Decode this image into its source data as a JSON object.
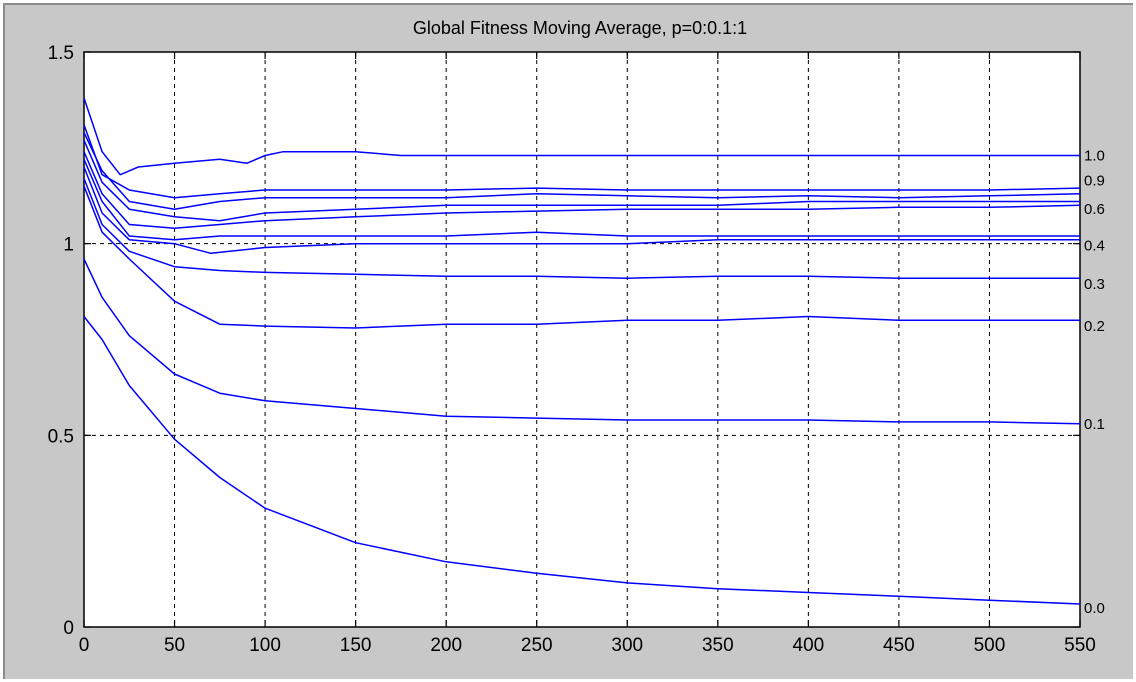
{
  "chart_data": {
    "type": "line",
    "title": "Global Fitness Moving Average, p=0:0.1:1",
    "xlabel": "",
    "ylabel": "",
    "xlim": [
      0,
      550
    ],
    "ylim": [
      0,
      1.5
    ],
    "x_ticks": [
      0,
      50,
      100,
      150,
      200,
      250,
      300,
      350,
      400,
      450,
      500,
      550
    ],
    "y_ticks": [
      0,
      0.5,
      1,
      1.5
    ],
    "y_tick_labels": [
      "0",
      "0.5",
      "1",
      "1.5"
    ],
    "grid": true,
    "line_color": "#0000ff",
    "series": [
      {
        "name": "0.0",
        "x": [
          0,
          10,
          25,
          50,
          75,
          100,
          150,
          200,
          250,
          300,
          350,
          400,
          450,
          500,
          550
        ],
        "y": [
          0.81,
          0.75,
          0.63,
          0.49,
          0.39,
          0.31,
          0.22,
          0.17,
          0.14,
          0.115,
          0.1,
          0.09,
          0.08,
          0.07,
          0.06
        ]
      },
      {
        "name": "0.1",
        "x": [
          0,
          10,
          25,
          50,
          75,
          100,
          150,
          200,
          250,
          300,
          350,
          400,
          450,
          500,
          550
        ],
        "y": [
          0.96,
          0.86,
          0.76,
          0.66,
          0.61,
          0.59,
          0.57,
          0.55,
          0.545,
          0.54,
          0.54,
          0.54,
          0.535,
          0.535,
          0.53
        ]
      },
      {
        "name": "0.2",
        "x": [
          0,
          10,
          25,
          50,
          75,
          100,
          150,
          200,
          250,
          300,
          350,
          400,
          450,
          500,
          550
        ],
        "y": [
          1.15,
          1.03,
          0.96,
          0.85,
          0.79,
          0.785,
          0.78,
          0.79,
          0.79,
          0.8,
          0.8,
          0.81,
          0.8,
          0.8,
          0.8
        ]
      },
      {
        "name": "0.3",
        "x": [
          0,
          10,
          25,
          50,
          75,
          100,
          150,
          200,
          250,
          300,
          350,
          400,
          450,
          500,
          550
        ],
        "y": [
          1.17,
          1.05,
          0.98,
          0.94,
          0.93,
          0.925,
          0.92,
          0.915,
          0.915,
          0.91,
          0.915,
          0.915,
          0.91,
          0.91,
          0.91
        ]
      },
      {
        "name": "",
        "x": [
          0,
          10,
          25,
          50,
          70,
          100,
          150,
          200,
          250,
          300,
          350,
          400,
          450,
          500,
          550
        ],
        "y": [
          1.2,
          1.08,
          1.01,
          1.0,
          0.975,
          0.99,
          1.0,
          1.0,
          1.0,
          1.0,
          1.01,
          1.01,
          1.01,
          1.01,
          1.01
        ]
      },
      {
        "name": "0.4",
        "x": [
          0,
          10,
          25,
          50,
          75,
          100,
          150,
          200,
          250,
          300,
          350,
          400,
          450,
          500,
          550
        ],
        "y": [
          1.22,
          1.11,
          1.02,
          1.01,
          1.02,
          1.02,
          1.02,
          1.02,
          1.03,
          1.02,
          1.02,
          1.02,
          1.02,
          1.02,
          1.02
        ]
      },
      {
        "name": "",
        "x": [
          0,
          10,
          25,
          50,
          75,
          100,
          150,
          200,
          250,
          300,
          350,
          400,
          450,
          500,
          550
        ],
        "y": [
          1.24,
          1.13,
          1.05,
          1.04,
          1.05,
          1.06,
          1.07,
          1.08,
          1.085,
          1.09,
          1.09,
          1.09,
          1.095,
          1.095,
          1.1
        ]
      },
      {
        "name": "0.6",
        "x": [
          0,
          10,
          25,
          50,
          75,
          100,
          150,
          200,
          250,
          300,
          350,
          400,
          450,
          500,
          550
        ],
        "y": [
          1.27,
          1.16,
          1.09,
          1.07,
          1.06,
          1.08,
          1.09,
          1.1,
          1.1,
          1.1,
          1.1,
          1.11,
          1.11,
          1.11,
          1.11
        ]
      },
      {
        "name": "",
        "x": [
          0,
          10,
          25,
          50,
          75,
          100,
          150,
          200,
          250,
          300,
          350,
          400,
          450,
          500,
          550
        ],
        "y": [
          1.29,
          1.19,
          1.11,
          1.09,
          1.11,
          1.12,
          1.12,
          1.12,
          1.13,
          1.125,
          1.12,
          1.125,
          1.12,
          1.125,
          1.13
        ]
      },
      {
        "name": "0.9",
        "x": [
          0,
          10,
          25,
          50,
          75,
          100,
          150,
          200,
          250,
          300,
          350,
          400,
          450,
          500,
          550
        ],
        "y": [
          1.31,
          1.18,
          1.14,
          1.12,
          1.13,
          1.14,
          1.14,
          1.14,
          1.145,
          1.14,
          1.14,
          1.14,
          1.14,
          1.14,
          1.145
        ]
      },
      {
        "name": "1.0",
        "x": [
          0,
          10,
          20,
          30,
          50,
          75,
          90,
          100,
          110,
          150,
          175,
          200,
          250,
          300,
          350,
          400,
          450,
          500,
          550
        ],
        "y": [
          1.38,
          1.24,
          1.18,
          1.2,
          1.21,
          1.22,
          1.21,
          1.23,
          1.24,
          1.24,
          1.23,
          1.23,
          1.23,
          1.23,
          1.23,
          1.23,
          1.23,
          1.23,
          1.23
        ]
      }
    ],
    "label_y_positions": [
      {
        "label": "1.0",
        "y": 1.23
      },
      {
        "label": "0.9",
        "y": 1.165
      },
      {
        "label": "0.6",
        "y": 1.09
      },
      {
        "label": "0.4",
        "y": 0.995
      },
      {
        "label": "0.3",
        "y": 0.895
      },
      {
        "label": "0.2",
        "y": 0.785
      },
      {
        "label": "0.1",
        "y": 0.53
      },
      {
        "label": "0.0",
        "y": 0.05
      }
    ]
  }
}
